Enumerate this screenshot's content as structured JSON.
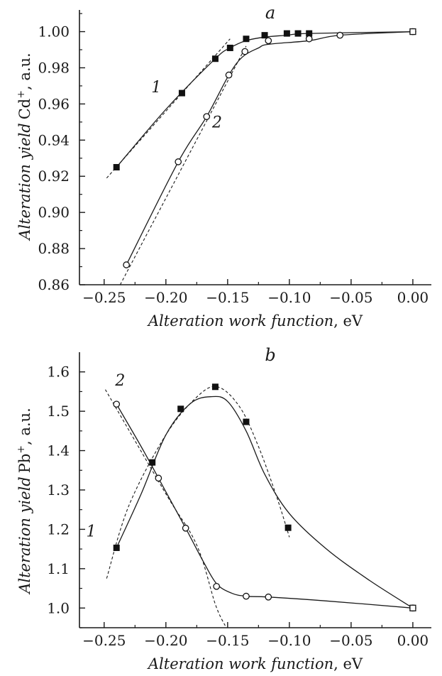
{
  "chart_data": [
    {
      "type": "scatter",
      "panel_label": "a",
      "xlabel": {
        "italic": "Alteration work function",
        "unit": ", eV"
      },
      "ylabel": {
        "italic": "Alteration yield",
        "ion": "Cd",
        "charge": "+",
        "unit": ", a.u."
      },
      "xlim": [
        -0.27,
        0.015
      ],
      "ylim": [
        0.86,
        1.012
      ],
      "xticks": [
        -0.25,
        -0.2,
        -0.15,
        -0.1,
        -0.05,
        0.0
      ],
      "xtick_labels": [
        "−0.25",
        "−0.20",
        "−0.15",
        "−0.10",
        "−0.05",
        "0.00"
      ],
      "yticks": [
        0.86,
        0.88,
        0.9,
        0.92,
        0.94,
        0.96,
        0.98,
        1.0
      ],
      "ytick_labels": [
        "0.86",
        "0.88",
        "0.90",
        "0.92",
        "0.94",
        "0.96",
        "0.98",
        "1.00"
      ],
      "grid": false,
      "series": [
        {
          "name": "1",
          "marker": "filled-square",
          "x": [
            -0.24,
            -0.187,
            -0.16,
            -0.148,
            -0.135,
            -0.12,
            -0.102,
            -0.093,
            -0.084,
            0.0
          ],
          "y": [
            0.925,
            0.966,
            0.985,
            0.991,
            0.996,
            0.998,
            0.999,
            0.999,
            0.999,
            1.0
          ]
        },
        {
          "name": "2",
          "marker": "open-circle",
          "x": [
            -0.232,
            -0.19,
            -0.167,
            -0.149,
            -0.136,
            -0.117,
            -0.084,
            -0.059,
            0.0
          ],
          "y": [
            0.871,
            0.928,
            0.953,
            0.976,
            0.989,
            0.995,
            0.996,
            0.998,
            1.0
          ]
        }
      ],
      "fits": [
        {
          "series": "1",
          "x": [
            -0.248,
            -0.148
          ],
          "y": [
            0.919,
            0.996
          ]
        },
        {
          "series": "2",
          "x": [
            -0.237,
            -0.135
          ],
          "y": [
            0.86,
            0.992
          ]
        }
      ]
    },
    {
      "type": "scatter",
      "panel_label": "b",
      "xlabel": {
        "italic": "Alteration work function",
        "unit": ", eV"
      },
      "ylabel": {
        "italic": "Alteration yield",
        "ion": "Pb",
        "charge": "+",
        "unit": ", a.u."
      },
      "xlim": [
        -0.27,
        0.015
      ],
      "ylim": [
        0.95,
        1.65
      ],
      "xticks": [
        -0.25,
        -0.2,
        -0.15,
        -0.1,
        -0.05,
        0.0
      ],
      "xtick_labels": [
        "−0.25",
        "−0.20",
        "−0.15",
        "−0.10",
        "−0.05",
        "0.00"
      ],
      "yticks": [
        1.0,
        1.1,
        1.2,
        1.3,
        1.4,
        1.5,
        1.6
      ],
      "ytick_labels": [
        "1.0",
        "1.1",
        "1.2",
        "1.3",
        "1.4",
        "1.5",
        "1.6"
      ],
      "grid": false,
      "series": [
        {
          "name": "1",
          "marker": "filled-square",
          "x": [
            -0.24,
            -0.211,
            -0.188,
            -0.16,
            -0.135,
            -0.101,
            0.0
          ],
          "y": [
            1.153,
            1.37,
            1.506,
            1.562,
            1.473,
            1.204,
            1.0
          ]
        },
        {
          "name": "2",
          "marker": "open-circle",
          "x": [
            -0.24,
            -0.206,
            -0.184,
            -0.159,
            -0.135,
            -0.117,
            0.0
          ],
          "y": [
            1.518,
            1.33,
            1.203,
            1.055,
            1.03,
            1.028,
            1.0
          ]
        }
      ],
      "fits": [
        {
          "series": "1",
          "x": [
            -0.248,
            -0.23,
            -0.2,
            -0.175,
            -0.158,
            -0.14,
            -0.125,
            -0.11,
            -0.1
          ],
          "y": [
            1.075,
            1.26,
            1.44,
            1.536,
            1.562,
            1.51,
            1.41,
            1.28,
            1.18
          ]
        },
        {
          "series": "2",
          "x": [
            -0.249,
            -0.2,
            -0.175,
            -0.16,
            -0.152
          ],
          "y": [
            1.555,
            1.29,
            1.16,
            1.01,
            0.955
          ]
        }
      ]
    }
  ]
}
